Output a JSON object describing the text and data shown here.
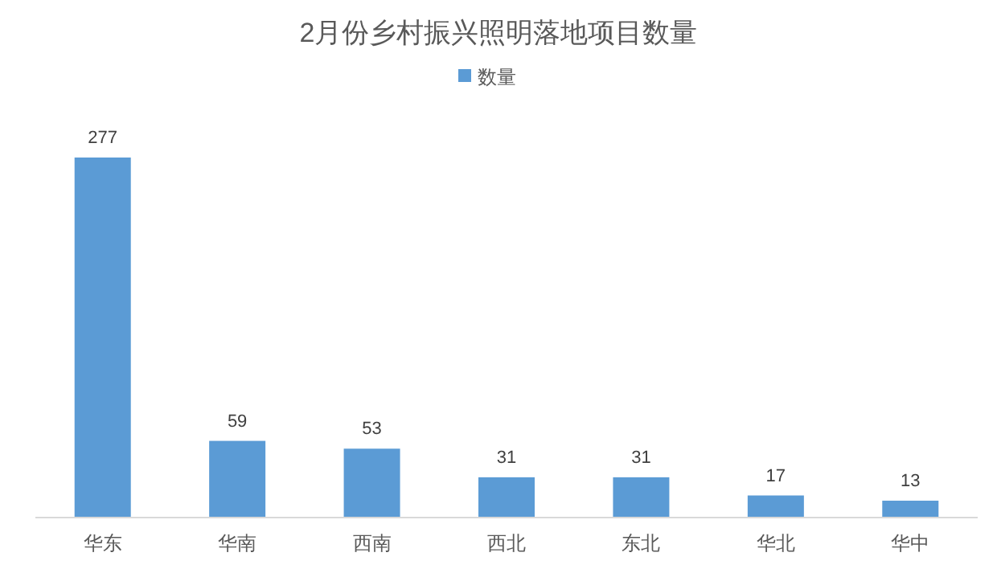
{
  "chart_data": {
    "type": "bar",
    "title": "2月份乡村振兴照明落地项目数量",
    "categories": [
      "华东",
      "华南",
      "西南",
      "西北",
      "东北",
      "华北",
      "华中"
    ],
    "series": [
      {
        "name": "数量",
        "color": "#5b9bd5",
        "values": [
          277,
          59,
          53,
          31,
          31,
          17,
          13
        ]
      }
    ],
    "data_labels": true,
    "legend": "top"
  }
}
